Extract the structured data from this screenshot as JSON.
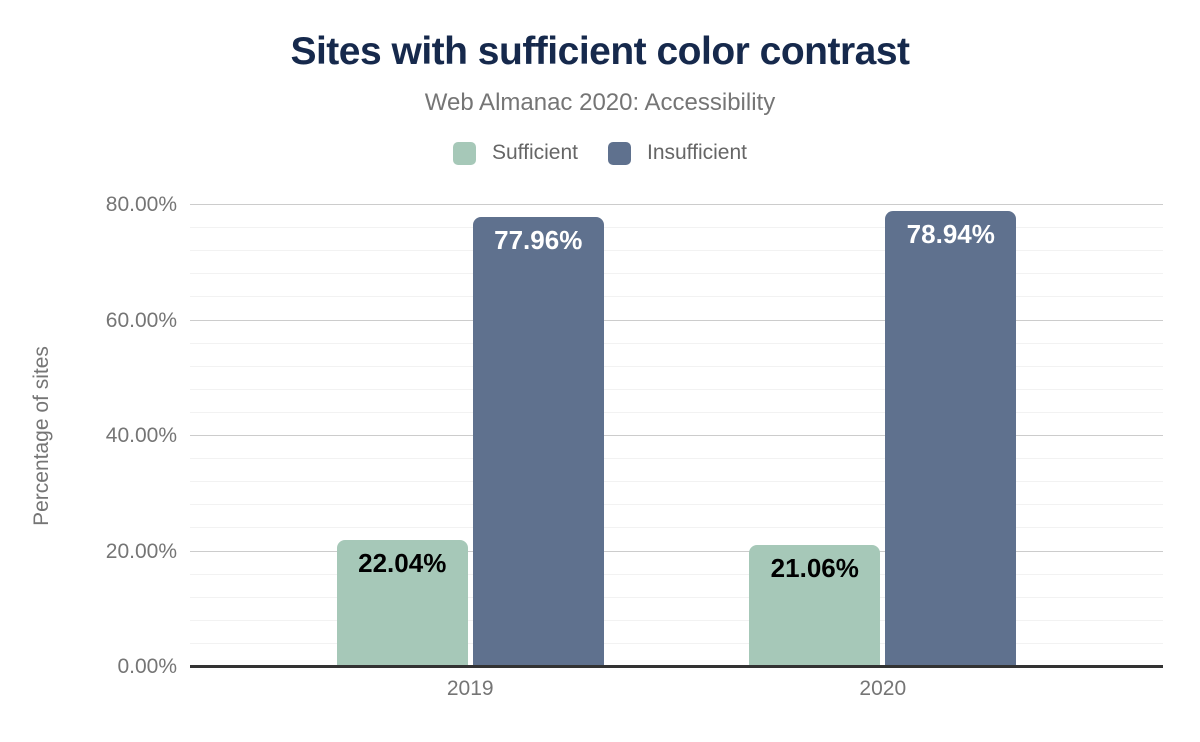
{
  "header": {
    "title": "Sites with sufficient color contrast",
    "subtitle": "Web Almanac 2020: Accessibility"
  },
  "legend": {
    "items": [
      {
        "label": "Sufficient",
        "color": "#a6c8b8"
      },
      {
        "label": "Insufficient",
        "color": "#5f718e"
      }
    ]
  },
  "chart_data": {
    "type": "bar",
    "title": "Sites with sufficient color contrast",
    "subtitle": "Web Almanac 2020: Accessibility",
    "categories": [
      "2019",
      "2020"
    ],
    "series": [
      {
        "name": "Sufficient",
        "color": "#a6c8b8",
        "label_text_color": "#000000",
        "values": [
          22.04,
          21.06
        ]
      },
      {
        "name": "Insufficient",
        "color": "#5f718e",
        "label_text_color": "#ffffff",
        "values": [
          77.96,
          78.94
        ]
      }
    ],
    "value_labels": [
      [
        "22.04%",
        "21.06%"
      ],
      [
        "77.96%",
        "78.94%"
      ]
    ],
    "xlabel": "",
    "ylabel": "Percentage of sites",
    "ylim": [
      0,
      80
    ],
    "y_major_step": 20,
    "y_minor_step": 4,
    "y_tick_labels": [
      "0.00%",
      "20.00%",
      "40.00%",
      "60.00%",
      "80.00%"
    ],
    "grid": true,
    "legend_position": "top"
  },
  "colors": {
    "title": "#16294c",
    "subtitle": "#757575",
    "axis_text": "#757575",
    "legend_text": "#666666",
    "grid_major": "#cccccc",
    "grid_minor": "#f2f2f2",
    "axis_line": "#333333",
    "background": "#ffffff"
  }
}
